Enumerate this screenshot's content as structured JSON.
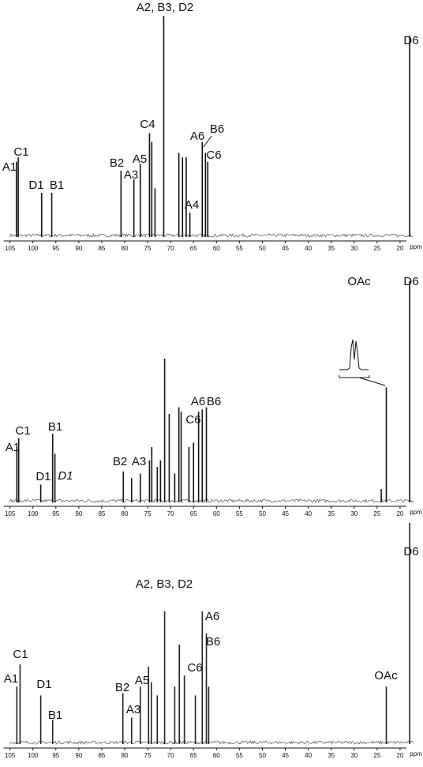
{
  "chart_data": [
    {
      "type": "stem",
      "xlabel": "ppm",
      "color": "#111111",
      "xlim": [
        107,
        15
      ],
      "xticks": [
        105,
        100,
        95,
        90,
        85,
        80,
        75,
        70,
        65,
        60,
        55,
        50,
        45,
        40,
        35,
        30,
        25,
        20
      ],
      "ylim": [
        0,
        100
      ],
      "x": [
        103.6,
        103.2,
        98.1,
        95.9,
        80.8,
        78.0,
        76.6,
        74.6,
        74.1,
        73.4,
        71.5,
        68.2,
        67.4,
        66.6,
        65.8,
        63.1,
        62.4,
        61.9,
        17.9
      ],
      "values": [
        34,
        36,
        20,
        20,
        30,
        26,
        33,
        47,
        43,
        22,
        100,
        38,
        36,
        36,
        11,
        43,
        38,
        34,
        91
      ],
      "annotations": [
        "A1",
        "C1",
        "D1",
        "B1",
        "B2",
        "A3",
        "A5",
        "C4",
        "A2, B3, D2",
        "A6",
        "B6",
        "C6",
        "A4",
        "D6"
      ]
    },
    {
      "type": "stem",
      "xlabel": "ppm",
      "color": "#111111",
      "xlim": [
        107,
        15
      ],
      "xticks": [
        105,
        100,
        95,
        90,
        85,
        80,
        75,
        70,
        65,
        60,
        55,
        50,
        45,
        40,
        35,
        30,
        25,
        20
      ],
      "ylim": [
        0,
        100
      ],
      "x": [
        103.5,
        103.1,
        98.3,
        95.7,
        95.2,
        80.3,
        78.5,
        76.6,
        74.6,
        74.1,
        72.9,
        72.2,
        71.3,
        70.3,
        69.1,
        68.2,
        67.7,
        66.0,
        65.0,
        63.9,
        63.1,
        62.2,
        24.1,
        23.0,
        17.9
      ],
      "values": [
        25,
        29,
        8,
        31,
        22,
        14,
        11,
        13,
        19,
        25,
        16,
        19,
        65,
        40,
        13,
        43,
        41,
        25,
        27,
        41,
        42,
        43,
        6,
        52,
        100
      ],
      "annotations": [
        "A1",
        "C1",
        "D1",
        "D1",
        "B1",
        "B2",
        "A3",
        "C6",
        "A6",
        "B6",
        "OAc",
        "D6"
      ]
    },
    {
      "type": "stem",
      "xlabel": "ppm",
      "color": "#222222",
      "xlim": [
        107,
        15
      ],
      "xticks": [
        105,
        100,
        95,
        90,
        85,
        80,
        75,
        70,
        65,
        60,
        55,
        50,
        45,
        40,
        35,
        30,
        25,
        20
      ],
      "ylim": [
        0,
        100
      ],
      "x": [
        103.5,
        102.8,
        98.3,
        95.7,
        80.4,
        78.5,
        76.6,
        74.8,
        74.2,
        72.9,
        71.3,
        69.1,
        68.1,
        67.0,
        64.6,
        63.1,
        62.2,
        61.7,
        23.0,
        17.9
      ],
      "values": [
        26,
        36,
        22,
        11,
        23,
        12,
        26,
        35,
        28,
        22,
        60,
        26,
        45,
        31,
        22,
        60,
        50,
        26,
        26,
        100
      ],
      "annotations": [
        "A1",
        "C1",
        "D1",
        "B1",
        "B2",
        "A3",
        "A5",
        "A2, B3, D2",
        "C6",
        "A6",
        "B6",
        "OAc",
        "D6"
      ]
    }
  ]
}
